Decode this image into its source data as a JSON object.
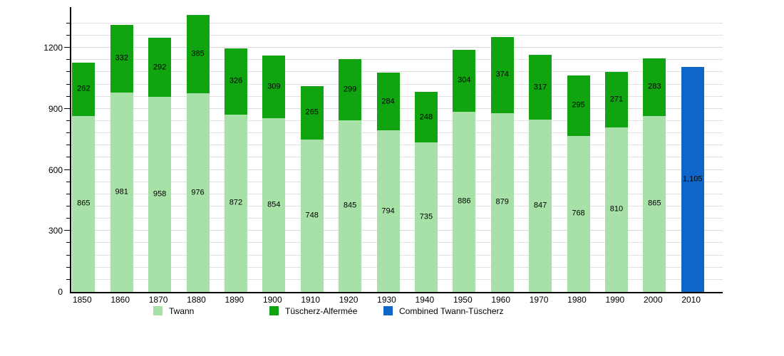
{
  "chart_data": {
    "type": "bar",
    "stacked": true,
    "title": "",
    "xlabel": "",
    "ylabel": "",
    "categories": [
      "1850",
      "1860",
      "1870",
      "1880",
      "1890",
      "1900",
      "1910",
      "1920",
      "1930",
      "1940",
      "1950",
      "1960",
      "1970",
      "1980",
      "1990",
      "2000",
      "2010"
    ],
    "series": [
      {
        "name": "Twann",
        "color": "#a7e1a7",
        "values": [
          865,
          981,
          958,
          976,
          872,
          854,
          748,
          845,
          794,
          735,
          886,
          879,
          847,
          768,
          810,
          865,
          null
        ]
      },
      {
        "name": "Tüscherz-Alfermée",
        "color": "#10a410",
        "values": [
          262,
          332,
          292,
          385,
          326,
          309,
          265,
          299,
          284,
          248,
          304,
          374,
          317,
          295,
          271,
          283,
          null
        ]
      },
      {
        "name": "Combined Twann-Tüscherz",
        "color": "#1065c8",
        "values": [
          null,
          null,
          null,
          null,
          null,
          null,
          null,
          null,
          null,
          null,
          null,
          null,
          null,
          null,
          null,
          null,
          1105
        ]
      }
    ],
    "ylim": [
      0,
      1400
    ],
    "yticks": [
      0,
      300,
      600,
      900,
      1200
    ],
    "grid_step": 60,
    "grid": true,
    "legend_position": "bottom",
    "legend": [
      "Twann",
      "Tüscherz-Alfermée",
      "Combined Twann-Tüscherz"
    ],
    "value_labels_shown": true,
    "value_label_format_example": "1,105"
  }
}
